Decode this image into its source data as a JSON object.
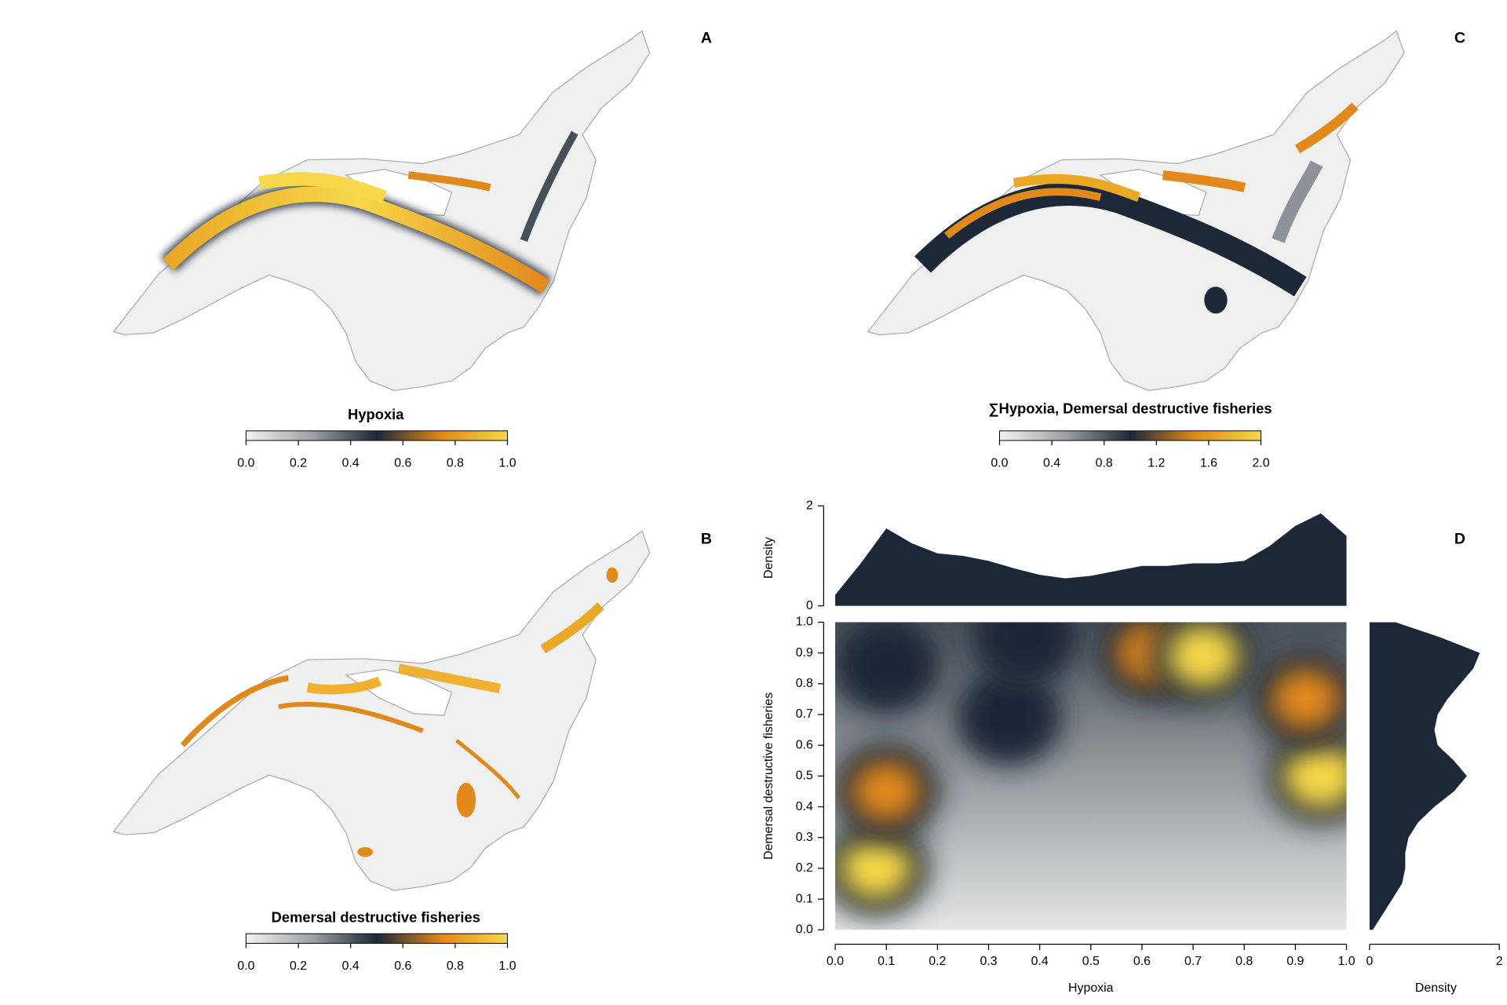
{
  "panels": [
    {
      "label": "A",
      "title": "Hypoxia",
      "colorbar": {
        "lim": [
          0,
          1
        ],
        "ticks": [
          {
            "value": 0,
            "label": "0.0"
          },
          {
            "value": 0.2,
            "label": "0.2"
          },
          {
            "value": 0.4,
            "label": "0.4"
          },
          {
            "value": 0.6,
            "label": "0.6"
          },
          {
            "value": 0.8,
            "label": "0.8"
          },
          {
            "value": 1,
            "label": "1.0"
          }
        ]
      }
    },
    {
      "label": "B",
      "title": "Demersal destructive fisheries",
      "colorbar": {
        "lim": [
          0,
          1
        ],
        "ticks": [
          {
            "value": 0,
            "label": "0.0"
          },
          {
            "value": 0.2,
            "label": "0.2"
          },
          {
            "value": 0.4,
            "label": "0.4"
          },
          {
            "value": 0.6,
            "label": "0.6"
          },
          {
            "value": 0.8,
            "label": "0.8"
          },
          {
            "value": 1,
            "label": "1.0"
          }
        ]
      }
    },
    {
      "label": "C",
      "title": "∑Hypoxia, Demersal destructive fisheries",
      "colorbar": {
        "lim": [
          0,
          2
        ],
        "ticks": [
          {
            "value": 0,
            "label": "0.0"
          },
          {
            "value": 0.4,
            "label": "0.4"
          },
          {
            "value": 0.8,
            "label": "0.8"
          },
          {
            "value": 1.2,
            "label": "1.2"
          },
          {
            "value": 1.6,
            "label": "1.6"
          },
          {
            "value": 2,
            "label": "2.0"
          }
        ]
      }
    }
  ],
  "colormap": [
    "#f2f2f2",
    "#9ea3a6",
    "#1c2838",
    "#e2891c",
    "#f6d848"
  ],
  "chart_data": {
    "type": "density2d",
    "label": "D",
    "xlabel": "Hypoxia",
    "ylabel": "Demersal destructive fisheries",
    "xlim": [
      0,
      1
    ],
    "xticks": [
      {
        "value": 0,
        "label": "0.0"
      },
      {
        "value": 0.1,
        "label": "0.1"
      },
      {
        "value": 0.2,
        "label": "0.2"
      },
      {
        "value": 0.3,
        "label": "0.3"
      },
      {
        "value": 0.4,
        "label": "0.4"
      },
      {
        "value": 0.5,
        "label": "0.5"
      },
      {
        "value": 0.6,
        "label": "0.6"
      },
      {
        "value": 0.7,
        "label": "0.7"
      },
      {
        "value": 0.8,
        "label": "0.8"
      },
      {
        "value": 0.9,
        "label": "0.9"
      },
      {
        "value": 1,
        "label": "1.0"
      }
    ],
    "ylim": [
      0,
      1
    ],
    "yticks": [
      {
        "value": 0,
        "label": "0.0"
      },
      {
        "value": 0.1,
        "label": "0.1"
      },
      {
        "value": 0.2,
        "label": "0.2"
      },
      {
        "value": 0.3,
        "label": "0.3"
      },
      {
        "value": 0.4,
        "label": "0.4"
      },
      {
        "value": 0.5,
        "label": "0.5"
      },
      {
        "value": 0.6,
        "label": "0.6"
      },
      {
        "value": 0.7,
        "label": "0.7"
      },
      {
        "value": 0.8,
        "label": "0.8"
      },
      {
        "value": 0.9,
        "label": "0.9"
      },
      {
        "value": 1,
        "label": "1.0"
      }
    ],
    "hotspots": [
      {
        "x": 0.08,
        "y": 0.2,
        "level": 0.85
      },
      {
        "x": 0.1,
        "y": 0.45,
        "level": 0.7
      },
      {
        "x": 0.95,
        "y": 0.5,
        "level": 1
      },
      {
        "x": 0.92,
        "y": 0.75,
        "level": 0.75
      },
      {
        "x": 0.62,
        "y": 0.9,
        "level": 0.8
      },
      {
        "x": 0.72,
        "y": 0.89,
        "level": 0.85
      },
      {
        "x": 0.34,
        "y": 0.69,
        "level": 0.45
      },
      {
        "x": 0.1,
        "y": 0.86,
        "level": 0.45
      },
      {
        "x": 0.37,
        "y": 0.95,
        "level": 0.4
      }
    ],
    "color": "#1c2838",
    "top_density": {
      "ylabel": "Density",
      "ylim": [
        0,
        2
      ],
      "yticks": [
        0,
        2
      ],
      "x": [
        0,
        0.05,
        0.1,
        0.15,
        0.2,
        0.25,
        0.3,
        0.35,
        0.4,
        0.45,
        0.5,
        0.55,
        0.6,
        0.65,
        0.7,
        0.75,
        0.8,
        0.85,
        0.9,
        0.95,
        1
      ],
      "values": [
        0.22,
        0.85,
        1.55,
        1.25,
        1.05,
        1.0,
        0.9,
        0.75,
        0.62,
        0.55,
        0.6,
        0.7,
        0.8,
        0.8,
        0.85,
        0.85,
        0.9,
        1.2,
        1.6,
        1.85,
        1.4
      ]
    },
    "right_density": {
      "xlabel": "Density",
      "xlim": [
        0,
        2
      ],
      "xticks": [
        0,
        2
      ],
      "y": [
        0,
        0.05,
        0.1,
        0.15,
        0.2,
        0.25,
        0.3,
        0.35,
        0.4,
        0.45,
        0.5,
        0.55,
        0.6,
        0.65,
        0.7,
        0.75,
        0.8,
        0.85,
        0.9,
        0.95,
        1
      ],
      "values": [
        0.05,
        0.2,
        0.35,
        0.5,
        0.55,
        0.55,
        0.6,
        0.75,
        1.0,
        1.3,
        1.5,
        1.3,
        1.05,
        1.0,
        1.05,
        1.2,
        1.4,
        1.6,
        1.7,
        1.1,
        0.4
      ]
    }
  }
}
